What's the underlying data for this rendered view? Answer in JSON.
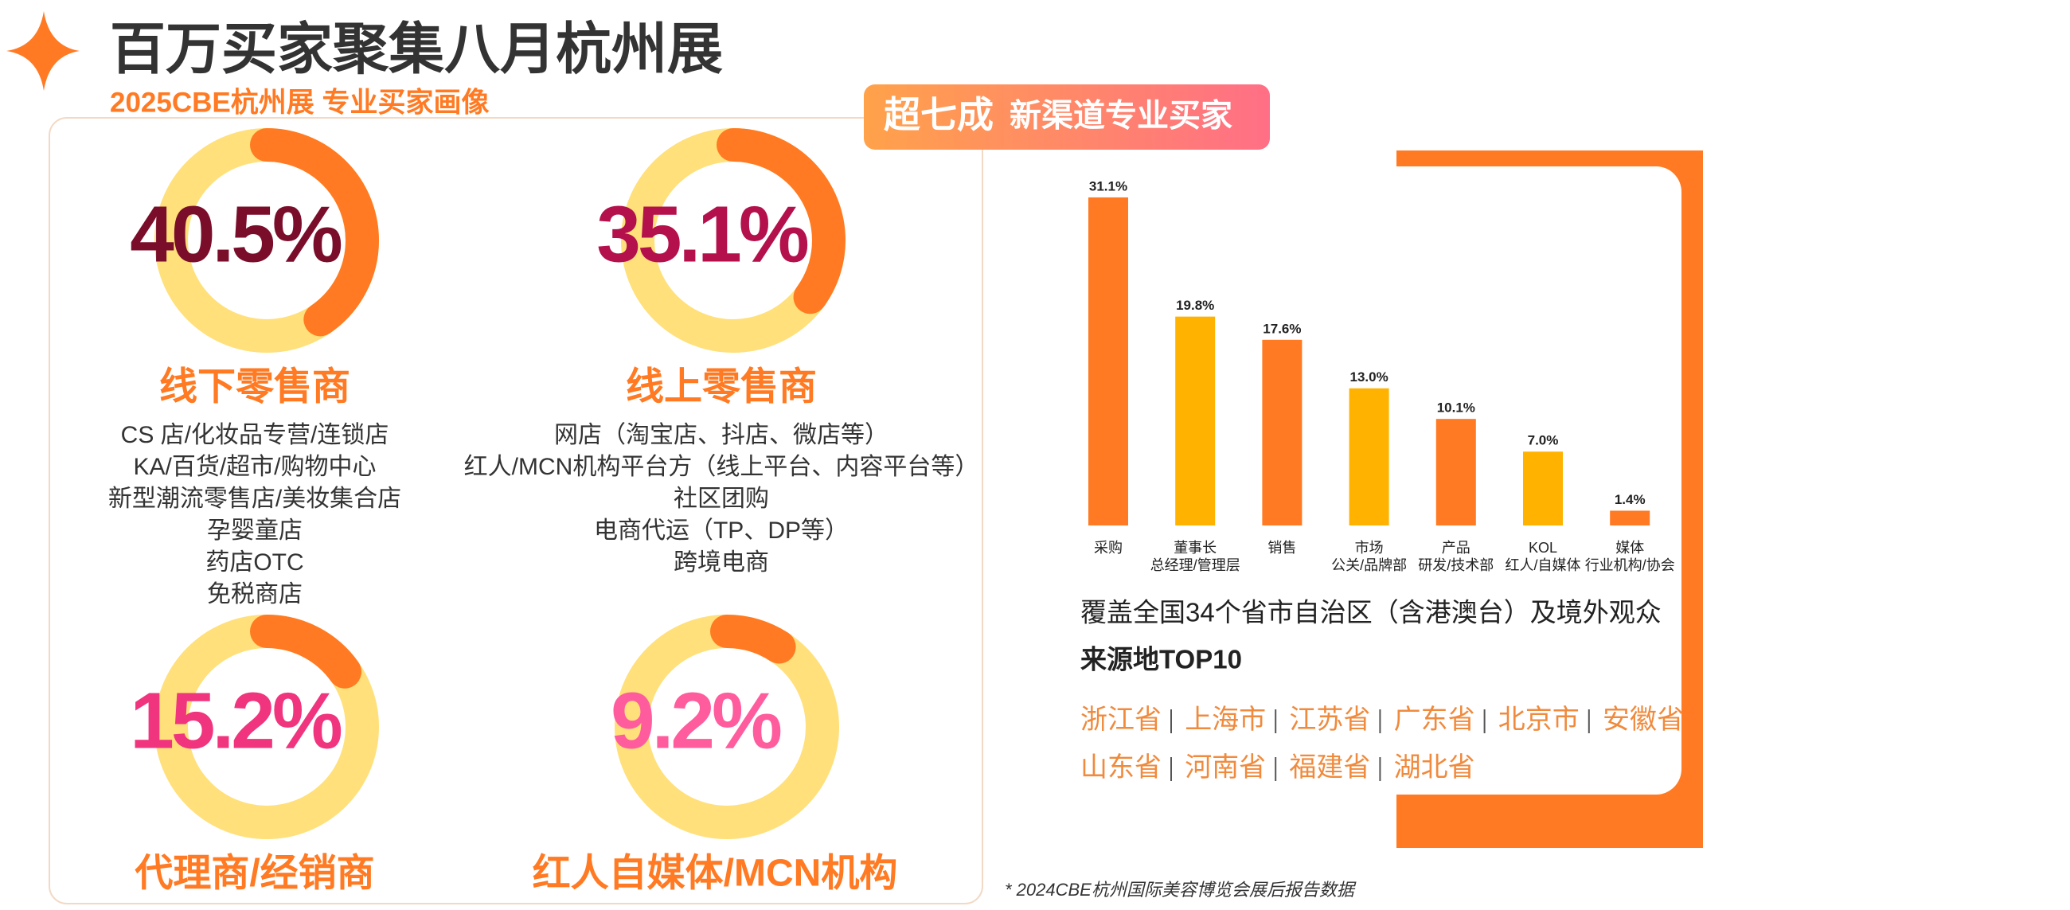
{
  "header": {
    "title": "百万买家聚集八月杭州展",
    "subtitle": "2025CBE杭州展 专业买家画像"
  },
  "donuts": [
    {
      "value": 40.5,
      "value_label": "40.5%",
      "title": "线下零售商",
      "color": "#7a0d2a",
      "items": [
        "CS 店/化妆品专营/连锁店",
        "KA/百货/超市/购物中心",
        "新型潮流零售店/美妆集合店",
        "孕婴童店",
        "药店OTC",
        "免税商店"
      ]
    },
    {
      "value": 35.1,
      "value_label": "35.1%",
      "title": "线上零售商",
      "color": "#b3104c",
      "items": [
        "网店（淘宝店、抖店、微店等）",
        "红人/MCN机构平台方（线上平台、内容平台等）",
        "社区团购",
        "电商代运（TP、DP等）",
        "跨境电商"
      ]
    },
    {
      "value": 15.2,
      "value_label": "15.2%",
      "title": "代理商/经销商",
      "color": "#f0347e",
      "items": []
    },
    {
      "value": 9.2,
      "value_label": "9.2%",
      "title": "红人自媒体/MCN机构",
      "color": "#ff5c9e",
      "items": []
    }
  ],
  "badge": {
    "strong": "超七成",
    "text": "新渠道专业买家"
  },
  "bar_chart": {
    "type": "bar",
    "categories": [
      [
        "采购"
      ],
      [
        "董事长",
        "总经理/管理层"
      ],
      [
        "销售"
      ],
      [
        "市场",
        "公关/品牌部"
      ],
      [
        "产品",
        "研发/技术部"
      ],
      [
        "KOL",
        "红人/自媒体"
      ],
      [
        "媒体",
        "行业机构/协会"
      ]
    ],
    "values": [
      31.1,
      19.8,
      17.6,
      13.0,
      10.1,
      7.0,
      1.4
    ],
    "value_labels": [
      "31.1%",
      "19.8%",
      "17.6%",
      "13.0%",
      "10.1%",
      "7.0%",
      "1.4%"
    ],
    "colors": [
      "#ff7a22",
      "#ffb300",
      "#ff7a22",
      "#ffb300",
      "#ff7a22",
      "#ffb300",
      "#ff7a22"
    ]
  },
  "coverage": "覆盖全国34个省市自治区（含港澳台）及境外观众",
  "top10_title": "来源地TOP10",
  "top10": [
    "浙江省",
    "上海市",
    "江苏省",
    "广东省",
    "北京市",
    "安徽省",
    "山东省",
    "河南省",
    "福建省",
    "湖北省"
  ],
  "footnote": "* 2024CBE杭州国际美容博览会展后报告数据"
}
